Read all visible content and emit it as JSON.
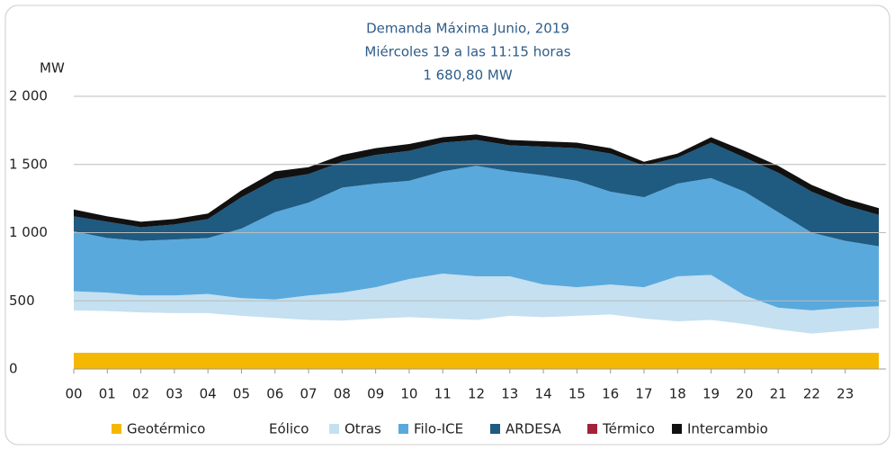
{
  "chart_data": {
    "type": "stacked-area",
    "title": "Demanda Máxima Junio, 2019",
    "subtitle": "Miércoles 19 a las 11:15 horas",
    "annotation": "1 680,80 MW",
    "y_label": "MW",
    "x": [
      0,
      1,
      2,
      3,
      4,
      5,
      6,
      7,
      8,
      9,
      10,
      11,
      12,
      13,
      14,
      15,
      16,
      17,
      18,
      19,
      20,
      21,
      22,
      23,
      24
    ],
    "xlim": [
      0,
      24
    ],
    "xticks": [
      {
        "value": 0,
        "label": "00"
      },
      {
        "value": 1,
        "label": "01"
      },
      {
        "value": 2,
        "label": "02"
      },
      {
        "value": 3,
        "label": "03"
      },
      {
        "value": 4,
        "label": "04"
      },
      {
        "value": 5,
        "label": "05"
      },
      {
        "value": 6,
        "label": "06"
      },
      {
        "value": 7,
        "label": "07"
      },
      {
        "value": 8,
        "label": "08"
      },
      {
        "value": 9,
        "label": "09"
      },
      10,
      11,
      12,
      13,
      14,
      15,
      16,
      17,
      18,
      19,
      20,
      21,
      22,
      23
    ],
    "ylim": [
      0,
      2000
    ],
    "yticks": [
      0,
      500,
      {
        "value": 1000,
        "label": "1 000"
      },
      {
        "value": 1500,
        "label": "1 500"
      },
      {
        "value": 2000,
        "label": "2 000"
      }
    ],
    "grid": true,
    "series": [
      {
        "name": "Geotérmico",
        "color": "#f5b800",
        "values": [
          120,
          120,
          120,
          120,
          120,
          120,
          120,
          120,
          120,
          120,
          120,
          120,
          120,
          120,
          120,
          120,
          120,
          120,
          120,
          120,
          120,
          120,
          120,
          120,
          120
        ]
      },
      {
        "name": "Eólico",
        "color": "#ffffff",
        "values": [
          310,
          305,
          295,
          290,
          290,
          270,
          255,
          240,
          235,
          250,
          260,
          250,
          240,
          270,
          260,
          270,
          280,
          250,
          230,
          240,
          210,
          170,
          140,
          160,
          180
        ]
      },
      {
        "name": "Otras",
        "color": "#c5e0f0",
        "values": [
          140,
          135,
          125,
          130,
          140,
          130,
          135,
          180,
          205,
          230,
          280,
          330,
          320,
          290,
          240,
          210,
          220,
          230,
          330,
          330,
          210,
          160,
          170,
          170,
          160
        ]
      },
      {
        "name": "Filo-ICE",
        "color": "#5aa9dc",
        "values": [
          440,
          400,
          400,
          410,
          410,
          510,
          640,
          680,
          770,
          760,
          720,
          750,
          810,
          770,
          800,
          780,
          680,
          660,
          680,
          710,
          760,
          700,
          570,
          490,
          440
        ]
      },
      {
        "name": "ARDESA",
        "color": "#1f5a80",
        "values": [
          110,
          120,
          100,
          110,
          140,
          230,
          240,
          210,
          190,
          210,
          220,
          210,
          190,
          190,
          210,
          240,
          280,
          230,
          190,
          260,
          250,
          290,
          300,
          260,
          230
        ]
      },
      {
        "name": "Térmico",
        "color": "#a3223a",
        "values": [
          0,
          0,
          0,
          0,
          0,
          0,
          0,
          0,
          0,
          0,
          0,
          0,
          0,
          0,
          0,
          0,
          0,
          0,
          0,
          0,
          0,
          0,
          0,
          0,
          0
        ]
      },
      {
        "name": "Intercambio",
        "color": "#111111",
        "values": [
          50,
          40,
          40,
          40,
          40,
          50,
          60,
          50,
          50,
          50,
          50,
          40,
          40,
          40,
          40,
          40,
          40,
          30,
          30,
          40,
          50,
          50,
          50,
          50,
          50
        ]
      }
    ]
  }
}
